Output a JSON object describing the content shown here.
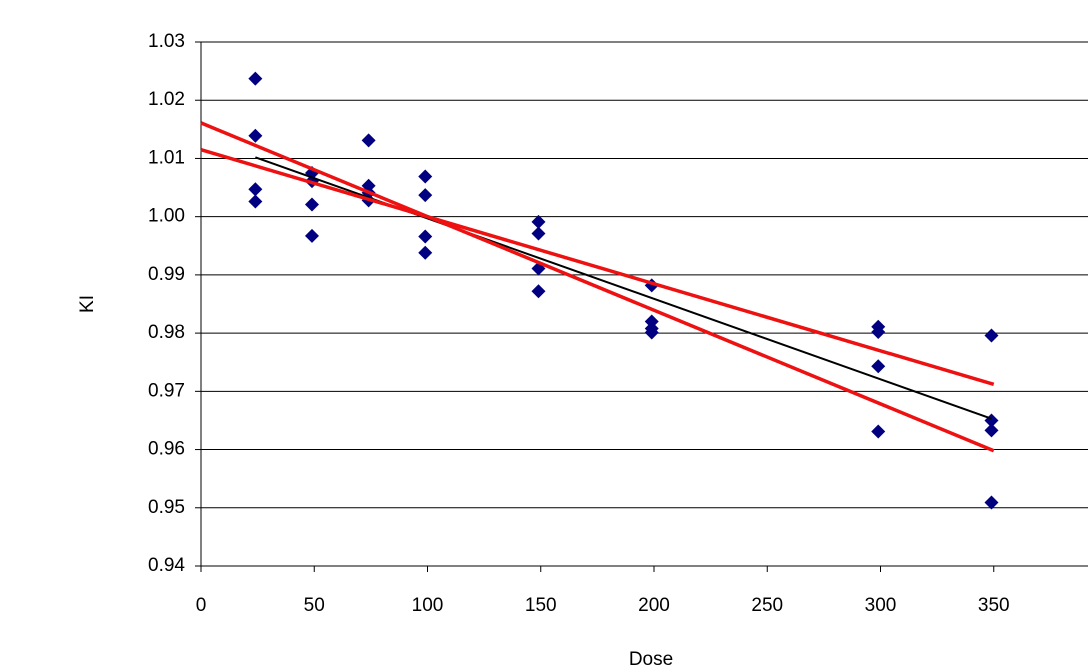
{
  "chart_data": {
    "type": "scatter",
    "x_label": "Dose",
    "y_label": "KI",
    "xlim": [
      0,
      400
    ],
    "xticks": [
      0,
      50,
      100,
      150,
      200,
      250,
      300,
      350,
      400
    ],
    "ylim": [
      0.94,
      1.03
    ],
    "yticks": [
      0.94,
      0.95,
      0.96,
      0.97,
      0.98,
      0.99,
      {
        "value": 1.0,
        "label": "1.00"
      },
      1.01,
      1.02,
      1.03
    ],
    "grid": true,
    "series": [
      {
        "style": "markers",
        "color": "#000080",
        "x": [
          24,
          24,
          24,
          24,
          49,
          49,
          49,
          49,
          74,
          74,
          74,
          74,
          99,
          99,
          99,
          99,
          149,
          149,
          149,
          149,
          199,
          199,
          199,
          199,
          299,
          299,
          299,
          299,
          349,
          349,
          349,
          349
        ],
        "values": [
          1.0237,
          1.0139,
          1.0047,
          1.0026,
          1.0075,
          1.0061,
          1.0021,
          0.9967,
          1.0131,
          1.0053,
          1.0041,
          1.0028,
          1.0069,
          1.0037,
          0.9966,
          0.9938,
          0.9991,
          0.9971,
          0.9911,
          0.9872,
          0.9882,
          0.982,
          0.9808,
          0.9801,
          0.9811,
          0.9802,
          0.9743,
          0.9631,
          0.9796,
          0.965,
          0.9633,
          0.9509
        ]
      },
      {
        "style": "line",
        "color": "#000000",
        "x": [
          24,
          349
        ],
        "values": [
          1.0102,
          0.9653
        ]
      },
      {
        "style": "line",
        "color": "#ee1111",
        "x": [
          0,
          350
        ],
        "values": [
          1.0115,
          0.9712
        ]
      },
      {
        "style": "line",
        "color": "#ee1111",
        "x": [
          0,
          350
        ],
        "values": [
          1.0161,
          0.9598
        ]
      }
    ]
  }
}
